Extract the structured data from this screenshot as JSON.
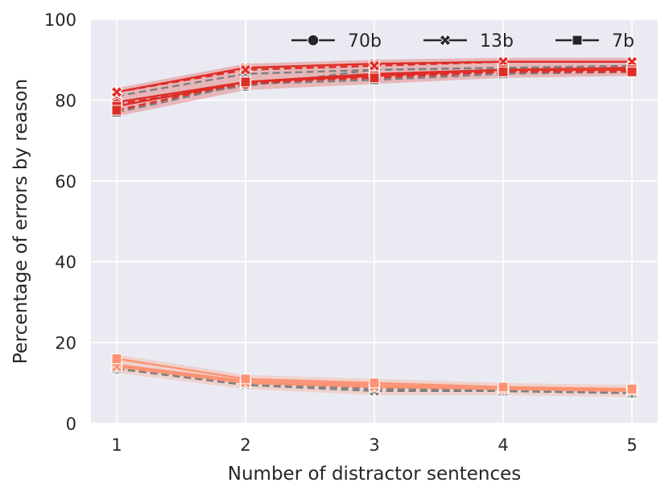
{
  "chart_data": {
    "type": "line",
    "title": "",
    "xlabel": "Number of distractor sentences",
    "ylabel": "Percentage of errors by reason",
    "x": [
      1,
      2,
      3,
      4,
      5
    ],
    "xlim": [
      0.8,
      5.2
    ],
    "ylim": [
      0,
      100
    ],
    "xticks": [
      "1",
      "2",
      "3",
      "4",
      "5"
    ],
    "yticks": [
      "0",
      "20",
      "40",
      "60",
      "80",
      "100"
    ],
    "grid": true,
    "legend": {
      "placement": "top",
      "entries": [
        {
          "label": "70b",
          "marker": "circle"
        },
        {
          "label": "13b",
          "marker": "x"
        },
        {
          "label": "7b",
          "marker": "square"
        }
      ]
    },
    "colors": {
      "background": "#eaeaf2",
      "grid": "#ffffff",
      "red": "#de2d26",
      "salmon": "#fc9272",
      "gray": "#7f7f7f"
    },
    "series": [
      {
        "group": "high",
        "model": "70b",
        "style": "solid",
        "color": "#de2d26",
        "marker": "circle",
        "values": [
          79.5,
          84.5,
          86.5,
          87.5,
          88
        ]
      },
      {
        "group": "high",
        "model": "70b",
        "style": "dashed",
        "color": "#de2d26",
        "marker": "circle",
        "values": [
          79,
          84,
          86,
          87,
          87.5
        ]
      },
      {
        "group": "high",
        "model": "13b",
        "style": "solid",
        "color": "#de2d26",
        "marker": "x",
        "values": [
          82,
          88,
          89,
          89.5,
          89.5
        ]
      },
      {
        "group": "high",
        "model": "13b",
        "style": "dashed",
        "color": "#de2d26",
        "marker": "x",
        "values": [
          82,
          87.5,
          88.5,
          89.5,
          89.5
        ]
      },
      {
        "group": "high",
        "model": "7b",
        "style": "solid",
        "color": "#de2d26",
        "marker": "square",
        "values": [
          78.5,
          84.5,
          86,
          87.5,
          87.5
        ]
      },
      {
        "group": "high",
        "model": "7b",
        "style": "dashed",
        "color": "#de2d26",
        "marker": "square",
        "values": [
          77.5,
          84.5,
          85.5,
          87,
          87
        ]
      },
      {
        "group": "high",
        "model": "70b",
        "style": "dashed",
        "color": "#7f7f7f",
        "marker": "circle",
        "values": [
          79,
          83.5,
          87.5,
          88,
          88
        ]
      },
      {
        "group": "high",
        "model": "13b",
        "style": "dashed",
        "color": "#7f7f7f",
        "marker": "x",
        "values": [
          81,
          86.5,
          87.5,
          88,
          88.5
        ]
      },
      {
        "group": "high",
        "model": "7b",
        "style": "dashed",
        "color": "#7f7f7f",
        "marker": "square",
        "values": [
          77,
          84,
          85,
          86.5,
          87
        ]
      },
      {
        "group": "low",
        "model": "70b",
        "style": "solid",
        "color": "#fc9272",
        "marker": "circle",
        "values": [
          14.5,
          10.5,
          9.5,
          8.5,
          8.5
        ]
      },
      {
        "group": "low",
        "model": "13b",
        "style": "solid",
        "color": "#fc9272",
        "marker": "x",
        "values": [
          14,
          10,
          9,
          8.5,
          8
        ]
      },
      {
        "group": "low",
        "model": "7b",
        "style": "solid",
        "color": "#fc9272",
        "marker": "square",
        "values": [
          16,
          11,
          10,
          9,
          8.5
        ]
      },
      {
        "group": "low",
        "model": "70b",
        "style": "dashed",
        "color": "#7f7f7f",
        "marker": "circle",
        "values": [
          13.5,
          10,
          8.5,
          8,
          7.5
        ]
      },
      {
        "group": "low",
        "model": "13b",
        "style": "dashed",
        "color": "#7f7f7f",
        "marker": "x",
        "values": [
          13.5,
          9.5,
          8,
          8,
          7.5
        ]
      },
      {
        "group": "low",
        "model": "7b",
        "style": "dashed",
        "color": "#7f7f7f",
        "marker": "square",
        "values": [
          14.5,
          10,
          9,
          8,
          7.5
        ]
      }
    ]
  }
}
